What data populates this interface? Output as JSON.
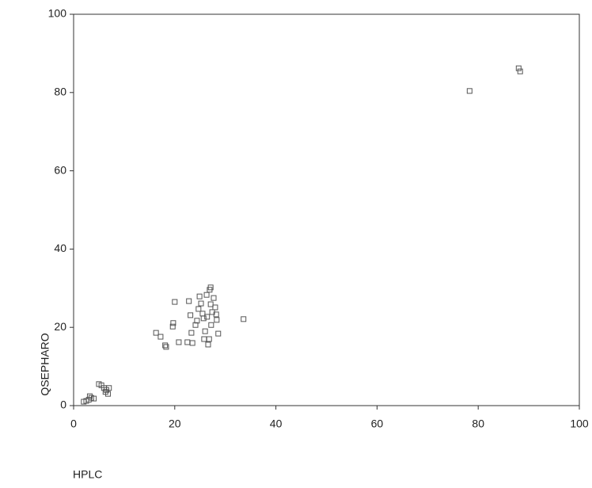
{
  "chart_data": {
    "type": "scatter",
    "x_label": "HPLC",
    "y_label": "QSEPHARO",
    "xlim": [
      0,
      100
    ],
    "ylim": [
      0,
      100
    ],
    "xticks": [
      0,
      20,
      40,
      60,
      80,
      100
    ],
    "yticks": [
      0,
      20,
      40,
      60,
      80,
      100
    ],
    "series": [
      {
        "color": "#555555",
        "x": [
          16.3,
          17.2,
          18.1,
          18.3,
          19.6,
          19.7,
          20.0,
          20.8,
          22.5,
          22.8,
          23.1,
          23.3,
          23.5,
          24.1,
          24.4,
          24.7,
          24.9,
          25.2,
          25.5,
          25.7,
          25.8,
          26.0,
          26.3,
          26.4,
          26.6,
          26.8,
          26.9,
          27.1,
          27.2,
          27.4,
          27.7,
          27.1,
          28.0,
          28.2,
          28.3,
          28.6,
          33.6,
          3.0,
          3.5,
          2.5,
          4.0,
          3.2,
          2.0,
          5.5,
          6.0,
          6.5,
          6.8,
          7.0,
          5.0,
          6.3,
          78.3,
          88.0,
          88.3
        ],
        "values": [
          18.6,
          17.6,
          15.4,
          15.0,
          20.2,
          21.1,
          26.5,
          16.2,
          16.2,
          26.7,
          23.1,
          18.6,
          16.0,
          20.6,
          21.7,
          24.7,
          27.9,
          26.1,
          23.5,
          22.3,
          17.0,
          19.0,
          28.3,
          22.7,
          15.6,
          17.0,
          29.6,
          25.9,
          20.6,
          23.9,
          27.5,
          30.2,
          25.1,
          23.3,
          21.9,
          18.4,
          22.1,
          1.5,
          2.0,
          1.2,
          1.8,
          2.4,
          1.0,
          5.2,
          4.5,
          4.0,
          3.0,
          4.5,
          5.5,
          3.5,
          80.4,
          86.2,
          85.4
        ]
      }
    ]
  }
}
